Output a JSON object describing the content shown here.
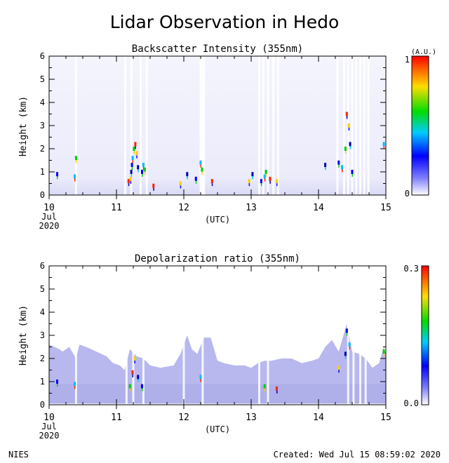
{
  "title": "Lidar Observation in Hedo",
  "footer_left": "NIES",
  "footer_right": "Created: Wed Jul 15 08:59:02 2020",
  "chart_data": [
    {
      "type": "heatmap",
      "title": "Backscatter Intensity (355nm)",
      "ylabel": "Height (km)",
      "xlabel": "(UTC)",
      "x_ticks": [
        "10",
        "11",
        "12",
        "13",
        "14",
        "15"
      ],
      "x_sub_month": "Jul",
      "x_sub_year": "2020",
      "xlim_day": [
        10,
        15
      ],
      "y_ticks": [
        "0",
        "1",
        "2",
        "3",
        "4",
        "5",
        "6"
      ],
      "ylim": [
        0,
        6
      ],
      "colorbar": {
        "unit": "(A.U.)",
        "min": "0",
        "max": "1"
      },
      "gaps_day": [
        10.4,
        11.13,
        11.22,
        11.36,
        11.45,
        12.25,
        12.28,
        12.3,
        13.12,
        13.18,
        13.25,
        13.33,
        13.4,
        14.28,
        14.38,
        14.44,
        14.5,
        14.56,
        14.62,
        14.68,
        14.74
      ],
      "features": [
        {
          "day": 10.12,
          "h": 0.9
        },
        {
          "day": 10.38,
          "h": 0.8
        },
        {
          "day": 10.4,
          "h": 1.6
        },
        {
          "day": 11.18,
          "h": 0.6
        },
        {
          "day": 11.21,
          "h": 0.7
        },
        {
          "day": 11.22,
          "h": 1.0
        },
        {
          "day": 11.23,
          "h": 1.3
        },
        {
          "day": 11.24,
          "h": 1.6
        },
        {
          "day": 11.26,
          "h": 2.0
        },
        {
          "day": 11.28,
          "h": 2.2
        },
        {
          "day": 11.3,
          "h": 1.8
        },
        {
          "day": 11.32,
          "h": 1.2
        },
        {
          "day": 11.38,
          "h": 1.0
        },
        {
          "day": 11.4,
          "h": 1.3
        },
        {
          "day": 11.42,
          "h": 1.1
        },
        {
          "day": 11.55,
          "h": 0.4
        },
        {
          "day": 11.95,
          "h": 0.5
        },
        {
          "day": 12.05,
          "h": 0.9
        },
        {
          "day": 12.18,
          "h": 0.7
        },
        {
          "day": 12.25,
          "h": 1.4
        },
        {
          "day": 12.27,
          "h": 1.1
        },
        {
          "day": 12.42,
          "h": 0.6
        },
        {
          "day": 12.97,
          "h": 0.6
        },
        {
          "day": 13.02,
          "h": 0.9
        },
        {
          "day": 13.15,
          "h": 0.6
        },
        {
          "day": 13.2,
          "h": 0.8
        },
        {
          "day": 13.22,
          "h": 1.0
        },
        {
          "day": 13.28,
          "h": 0.7
        },
        {
          "day": 13.38,
          "h": 0.6
        },
        {
          "day": 14.1,
          "h": 1.3
        },
        {
          "day": 14.3,
          "h": 1.4
        },
        {
          "day": 14.35,
          "h": 1.2
        },
        {
          "day": 14.4,
          "h": 2.0
        },
        {
          "day": 14.42,
          "h": 3.5
        },
        {
          "day": 14.45,
          "h": 3.0
        },
        {
          "day": 14.47,
          "h": 2.2
        },
        {
          "day": 14.5,
          "h": 1.0
        },
        {
          "day": 14.97,
          "h": 2.2
        }
      ]
    },
    {
      "type": "heatmap",
      "title": "Depolarization ratio (355nm)",
      "ylabel": "Height (km)",
      "xlabel": "(UTC)",
      "x_ticks": [
        "10",
        "11",
        "12",
        "13",
        "14",
        "15"
      ],
      "x_sub_month": "Jul",
      "x_sub_year": "2020",
      "xlim_day": [
        10,
        15
      ],
      "y_ticks": [
        "0",
        "1",
        "2",
        "3",
        "4",
        "5",
        "6"
      ],
      "ylim": [
        0,
        6
      ],
      "colorbar": {
        "min": "0.0",
        "max": "0.3"
      },
      "top_profile": [
        [
          10.0,
          2.6
        ],
        [
          10.08,
          2.5
        ],
        [
          10.15,
          2.4
        ],
        [
          10.2,
          2.3
        ],
        [
          10.3,
          2.5
        ],
        [
          10.4,
          2.0
        ],
        [
          10.45,
          2.6
        ],
        [
          10.55,
          2.5
        ],
        [
          10.7,
          2.3
        ],
        [
          10.85,
          2.1
        ],
        [
          10.95,
          1.8
        ],
        [
          11.05,
          1.7
        ],
        [
          11.12,
          1.5
        ],
        [
          11.2,
          2.4
        ],
        [
          11.3,
          2.1
        ],
        [
          11.4,
          2.0
        ],
        [
          11.5,
          1.7
        ],
        [
          11.65,
          1.6
        ],
        [
          11.85,
          1.7
        ],
        [
          11.95,
          2.2
        ],
        [
          12.05,
          3.0
        ],
        [
          12.12,
          2.4
        ],
        [
          12.2,
          2.2
        ],
        [
          12.3,
          2.9
        ],
        [
          12.4,
          2.9
        ],
        [
          12.5,
          1.9
        ],
        [
          12.6,
          1.8
        ],
        [
          12.75,
          1.7
        ],
        [
          12.9,
          1.7
        ],
        [
          13.0,
          1.6
        ],
        [
          13.1,
          1.8
        ],
        [
          13.2,
          1.9
        ],
        [
          13.3,
          1.9
        ],
        [
          13.45,
          2.0
        ],
        [
          13.6,
          2.0
        ],
        [
          13.75,
          1.8
        ],
        [
          13.9,
          1.9
        ],
        [
          14.0,
          2.0
        ],
        [
          14.1,
          2.5
        ],
        [
          14.2,
          2.8
        ],
        [
          14.3,
          2.3
        ],
        [
          14.42,
          3.5
        ],
        [
          14.5,
          2.3
        ],
        [
          14.6,
          2.2
        ],
        [
          14.7,
          2.0
        ],
        [
          14.8,
          1.6
        ],
        [
          14.9,
          1.8
        ],
        [
          14.97,
          2.5
        ],
        [
          15.0,
          2.2
        ]
      ],
      "gaps_day": [
        10.4,
        11.15,
        11.25,
        11.4,
        12.0,
        12.28,
        13.12,
        13.25,
        14.44,
        14.52,
        14.62,
        14.7
      ],
      "features": [
        {
          "day": 10.12,
          "h": 1.0
        },
        {
          "day": 10.38,
          "h": 0.9
        },
        {
          "day": 11.2,
          "h": 0.8
        },
        {
          "day": 11.24,
          "h": 1.4
        },
        {
          "day": 11.27,
          "h": 2.0
        },
        {
          "day": 11.32,
          "h": 1.2
        },
        {
          "day": 11.38,
          "h": 0.8
        },
        {
          "day": 12.25,
          "h": 1.2
        },
        {
          "day": 13.2,
          "h": 0.8
        },
        {
          "day": 13.38,
          "h": 0.7
        },
        {
          "day": 14.3,
          "h": 1.6
        },
        {
          "day": 14.4,
          "h": 2.2
        },
        {
          "day": 14.42,
          "h": 3.2
        },
        {
          "day": 14.46,
          "h": 2.6
        },
        {
          "day": 14.97,
          "h": 2.3
        }
      ]
    }
  ]
}
